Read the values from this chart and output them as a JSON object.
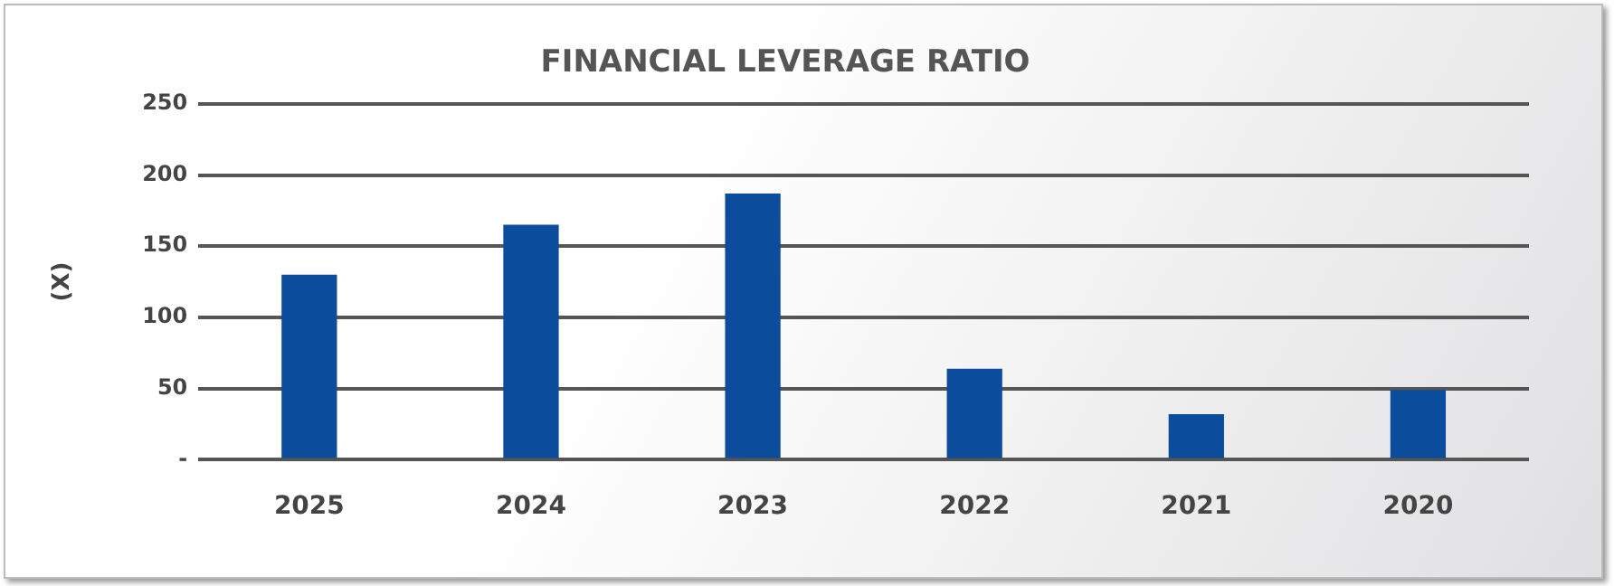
{
  "chart_data": {
    "type": "bar",
    "title": "FINANCIAL LEVERAGE RATIO",
    "ylabel": "(X)",
    "categories": [
      "2025",
      "2024",
      "2023",
      "2022",
      "2021",
      "2020"
    ],
    "values": [
      130,
      165,
      187,
      64,
      32,
      49
    ],
    "color": "#0b4c9c",
    "ylim": [
      0,
      250
    ],
    "yticks": [
      {
        "value": 0,
        "label": "-"
      },
      50,
      100,
      150,
      200,
      250
    ],
    "grid": "y",
    "legend": false
  }
}
